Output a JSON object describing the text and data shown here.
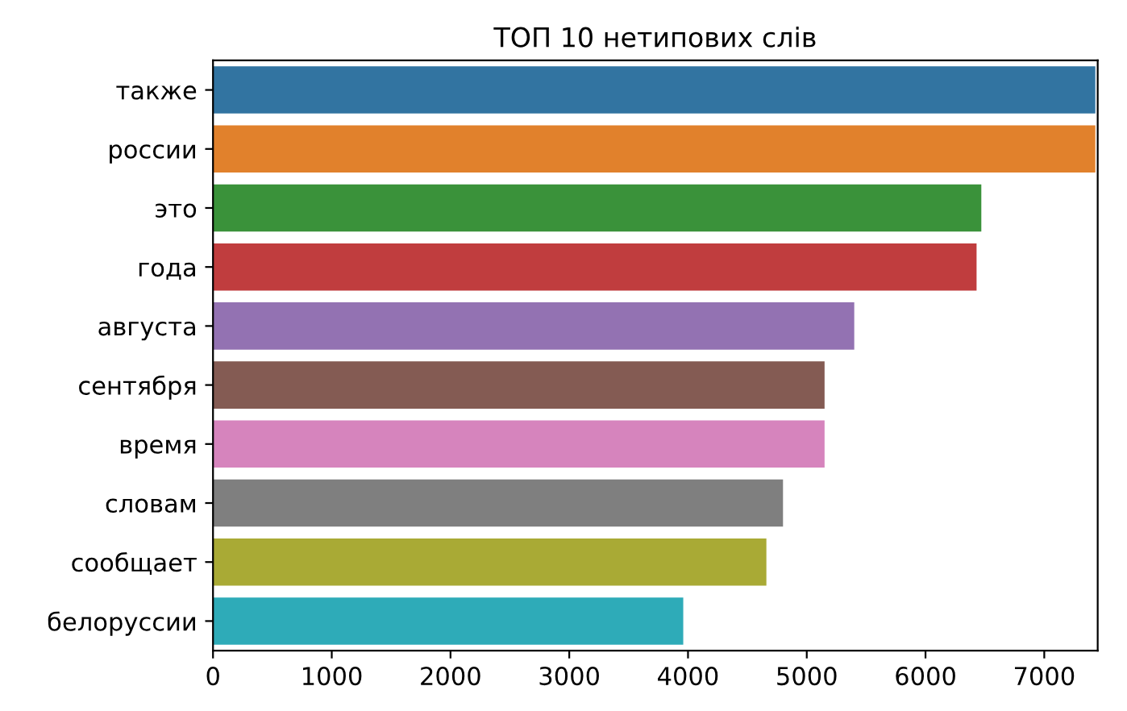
{
  "chart_data": {
    "type": "bar",
    "orientation": "horizontal",
    "title": "ТОП 10 нетипових слів",
    "categories": [
      "также",
      "россии",
      "это",
      "года",
      "августа",
      "сентября",
      "время",
      "словам",
      "сообщает",
      "белоруссии"
    ],
    "values": [
      7430,
      7430,
      6470,
      6430,
      5400,
      5150,
      5150,
      4800,
      4660,
      3960
    ],
    "colors": [
      "#3274a1",
      "#e1812c",
      "#3a923a",
      "#c03d3e",
      "#9372b2",
      "#845b53",
      "#d684bd",
      "#7f7f7f",
      "#a9aa35",
      "#2eabb8"
    ],
    "xlim": [
      0,
      7450
    ],
    "xticks": [
      0,
      1000,
      2000,
      3000,
      4000,
      5000,
      6000,
      7000
    ],
    "grid": false,
    "legend": false
  }
}
